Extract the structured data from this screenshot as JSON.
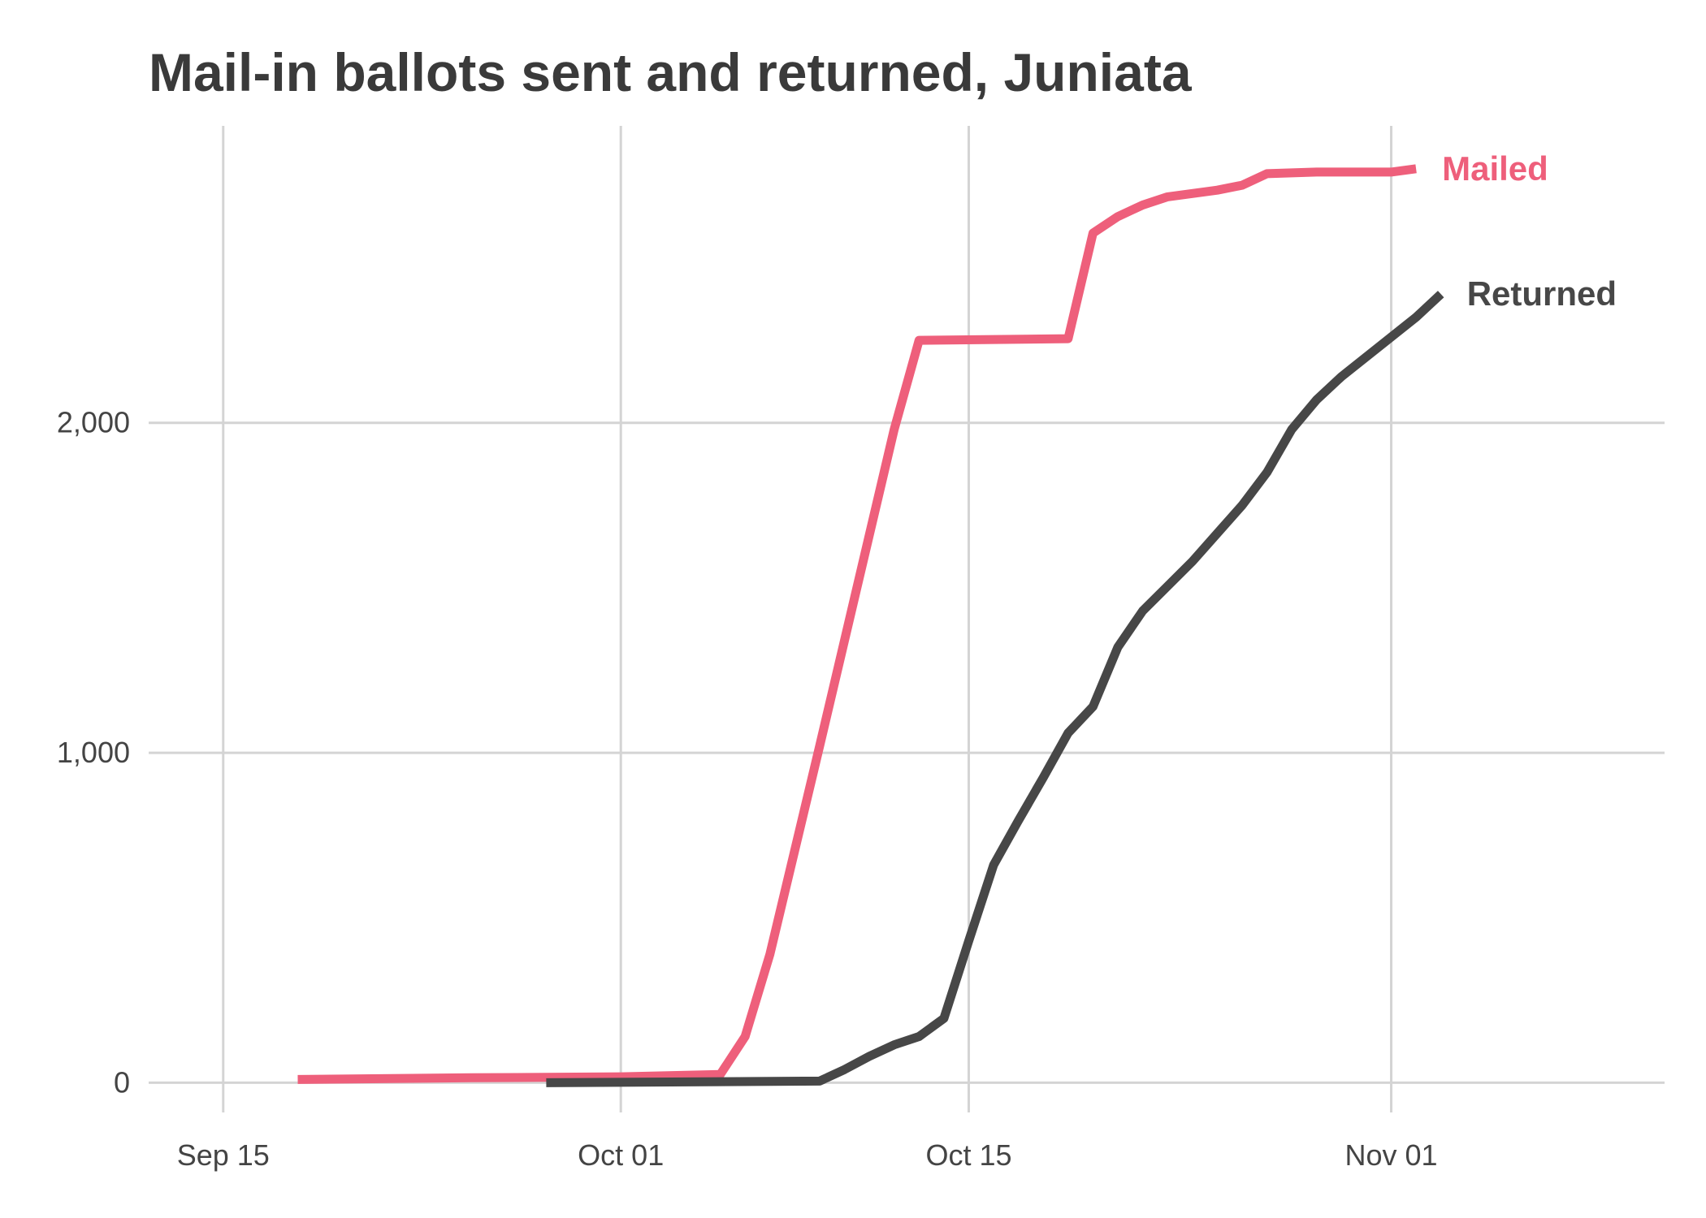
{
  "chart_data": {
    "type": "line",
    "title": "Mail-in ballots sent and returned, Juniata",
    "xlabel": "",
    "ylabel": "",
    "xlim": [
      "2020-09-12",
      "2020-11-12"
    ],
    "ylim": [
      -90,
      2900
    ],
    "x_ticks": [
      {
        "date": "2020-09-15",
        "label": "Sep 15"
      },
      {
        "date": "2020-10-01",
        "label": "Oct 01"
      },
      {
        "date": "2020-10-15",
        "label": "Oct 15"
      },
      {
        "date": "2020-11-01",
        "label": "Nov 01"
      }
    ],
    "y_ticks": [
      {
        "value": 0,
        "label": "0"
      },
      {
        "value": 1000,
        "label": "1,000"
      },
      {
        "value": 2000,
        "label": "2,000"
      }
    ],
    "grid": true,
    "legend": "direct labels at line ends",
    "series": [
      {
        "name": "Mailed",
        "color": "#ee5f7b",
        "points": [
          {
            "x": "2020-09-18",
            "y": 10
          },
          {
            "x": "2020-09-25",
            "y": 15
          },
          {
            "x": "2020-10-01",
            "y": 18
          },
          {
            "x": "2020-10-05",
            "y": 25
          },
          {
            "x": "2020-10-06",
            "y": 140
          },
          {
            "x": "2020-10-07",
            "y": 390
          },
          {
            "x": "2020-10-09",
            "y": 1020
          },
          {
            "x": "2020-10-12",
            "y": 1980
          },
          {
            "x": "2020-10-13",
            "y": 2250
          },
          {
            "x": "2020-10-19",
            "y": 2255
          },
          {
            "x": "2020-10-20",
            "y": 2575
          },
          {
            "x": "2020-10-21",
            "y": 2625
          },
          {
            "x": "2020-10-22",
            "y": 2660
          },
          {
            "x": "2020-10-23",
            "y": 2685
          },
          {
            "x": "2020-10-25",
            "y": 2705
          },
          {
            "x": "2020-10-26",
            "y": 2720
          },
          {
            "x": "2020-10-27",
            "y": 2755
          },
          {
            "x": "2020-10-29",
            "y": 2760
          },
          {
            "x": "2020-11-01",
            "y": 2760
          },
          {
            "x": "2020-11-02",
            "y": 2770
          }
        ]
      },
      {
        "name": "Returned",
        "color": "#474747",
        "points": [
          {
            "x": "2020-09-28",
            "y": 0
          },
          {
            "x": "2020-10-09",
            "y": 5
          },
          {
            "x": "2020-10-10",
            "y": 40
          },
          {
            "x": "2020-10-11",
            "y": 80
          },
          {
            "x": "2020-10-12",
            "y": 115
          },
          {
            "x": "2020-10-13",
            "y": 140
          },
          {
            "x": "2020-10-14",
            "y": 195
          },
          {
            "x": "2020-10-15",
            "y": 430
          },
          {
            "x": "2020-10-16",
            "y": 660
          },
          {
            "x": "2020-10-17",
            "y": 795
          },
          {
            "x": "2020-10-18",
            "y": 925
          },
          {
            "x": "2020-10-19",
            "y": 1060
          },
          {
            "x": "2020-10-20",
            "y": 1140
          },
          {
            "x": "2020-10-21",
            "y": 1320
          },
          {
            "x": "2020-10-22",
            "y": 1430
          },
          {
            "x": "2020-10-23",
            "y": 1505
          },
          {
            "x": "2020-10-24",
            "y": 1580
          },
          {
            "x": "2020-10-25",
            "y": 1665
          },
          {
            "x": "2020-10-26",
            "y": 1750
          },
          {
            "x": "2020-10-27",
            "y": 1850
          },
          {
            "x": "2020-10-28",
            "y": 1980
          },
          {
            "x": "2020-10-29",
            "y": 2070
          },
          {
            "x": "2020-10-30",
            "y": 2140
          },
          {
            "x": "2020-10-31",
            "y": 2200
          },
          {
            "x": "2020-11-01",
            "y": 2260
          },
          {
            "x": "2020-11-02",
            "y": 2320
          },
          {
            "x": "2020-11-03",
            "y": 2390
          }
        ]
      }
    ]
  }
}
